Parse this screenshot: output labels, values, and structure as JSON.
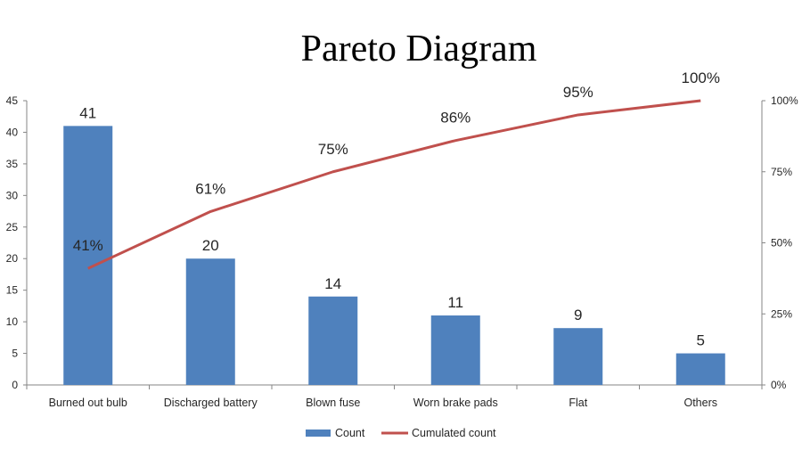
{
  "chart_data": {
    "type": "bar",
    "title": "Pareto Diagram",
    "categories": [
      "Burned out bulb",
      "Discharged battery",
      "Blown fuse",
      "Worn brake pads",
      "Flat",
      "Others"
    ],
    "series": [
      {
        "name": "Count",
        "type": "bar",
        "axis": "left",
        "values": [
          41,
          20,
          14,
          11,
          9,
          5
        ],
        "data_labels": [
          "41",
          "20",
          "14",
          "11",
          "9",
          "5"
        ],
        "color": "#4f81bd"
      },
      {
        "name": "Cumulated count",
        "type": "line",
        "axis": "right",
        "values": [
          41,
          61,
          75,
          86,
          95,
          100
        ],
        "data_labels": [
          "41%",
          "61%",
          "75%",
          "86%",
          "95%",
          "100%"
        ],
        "color": "#c0504d"
      }
    ],
    "y_left": {
      "range": [
        0,
        45
      ],
      "ticks": [
        0,
        5,
        10,
        15,
        20,
        25,
        30,
        35,
        40,
        45
      ],
      "tick_labels": [
        "0",
        "5",
        "10",
        "15",
        "20",
        "25",
        "30",
        "35",
        "40",
        "45"
      ]
    },
    "y_right": {
      "range": [
        0,
        100
      ],
      "ticks": [
        0,
        25,
        50,
        75,
        100
      ],
      "tick_labels": [
        "0%",
        "25%",
        "50%",
        "75%",
        "100%"
      ]
    },
    "grid": false,
    "legend_position": "bottom",
    "colors": {
      "axis": "#868686",
      "text": "#262626",
      "title": "#000000"
    }
  }
}
